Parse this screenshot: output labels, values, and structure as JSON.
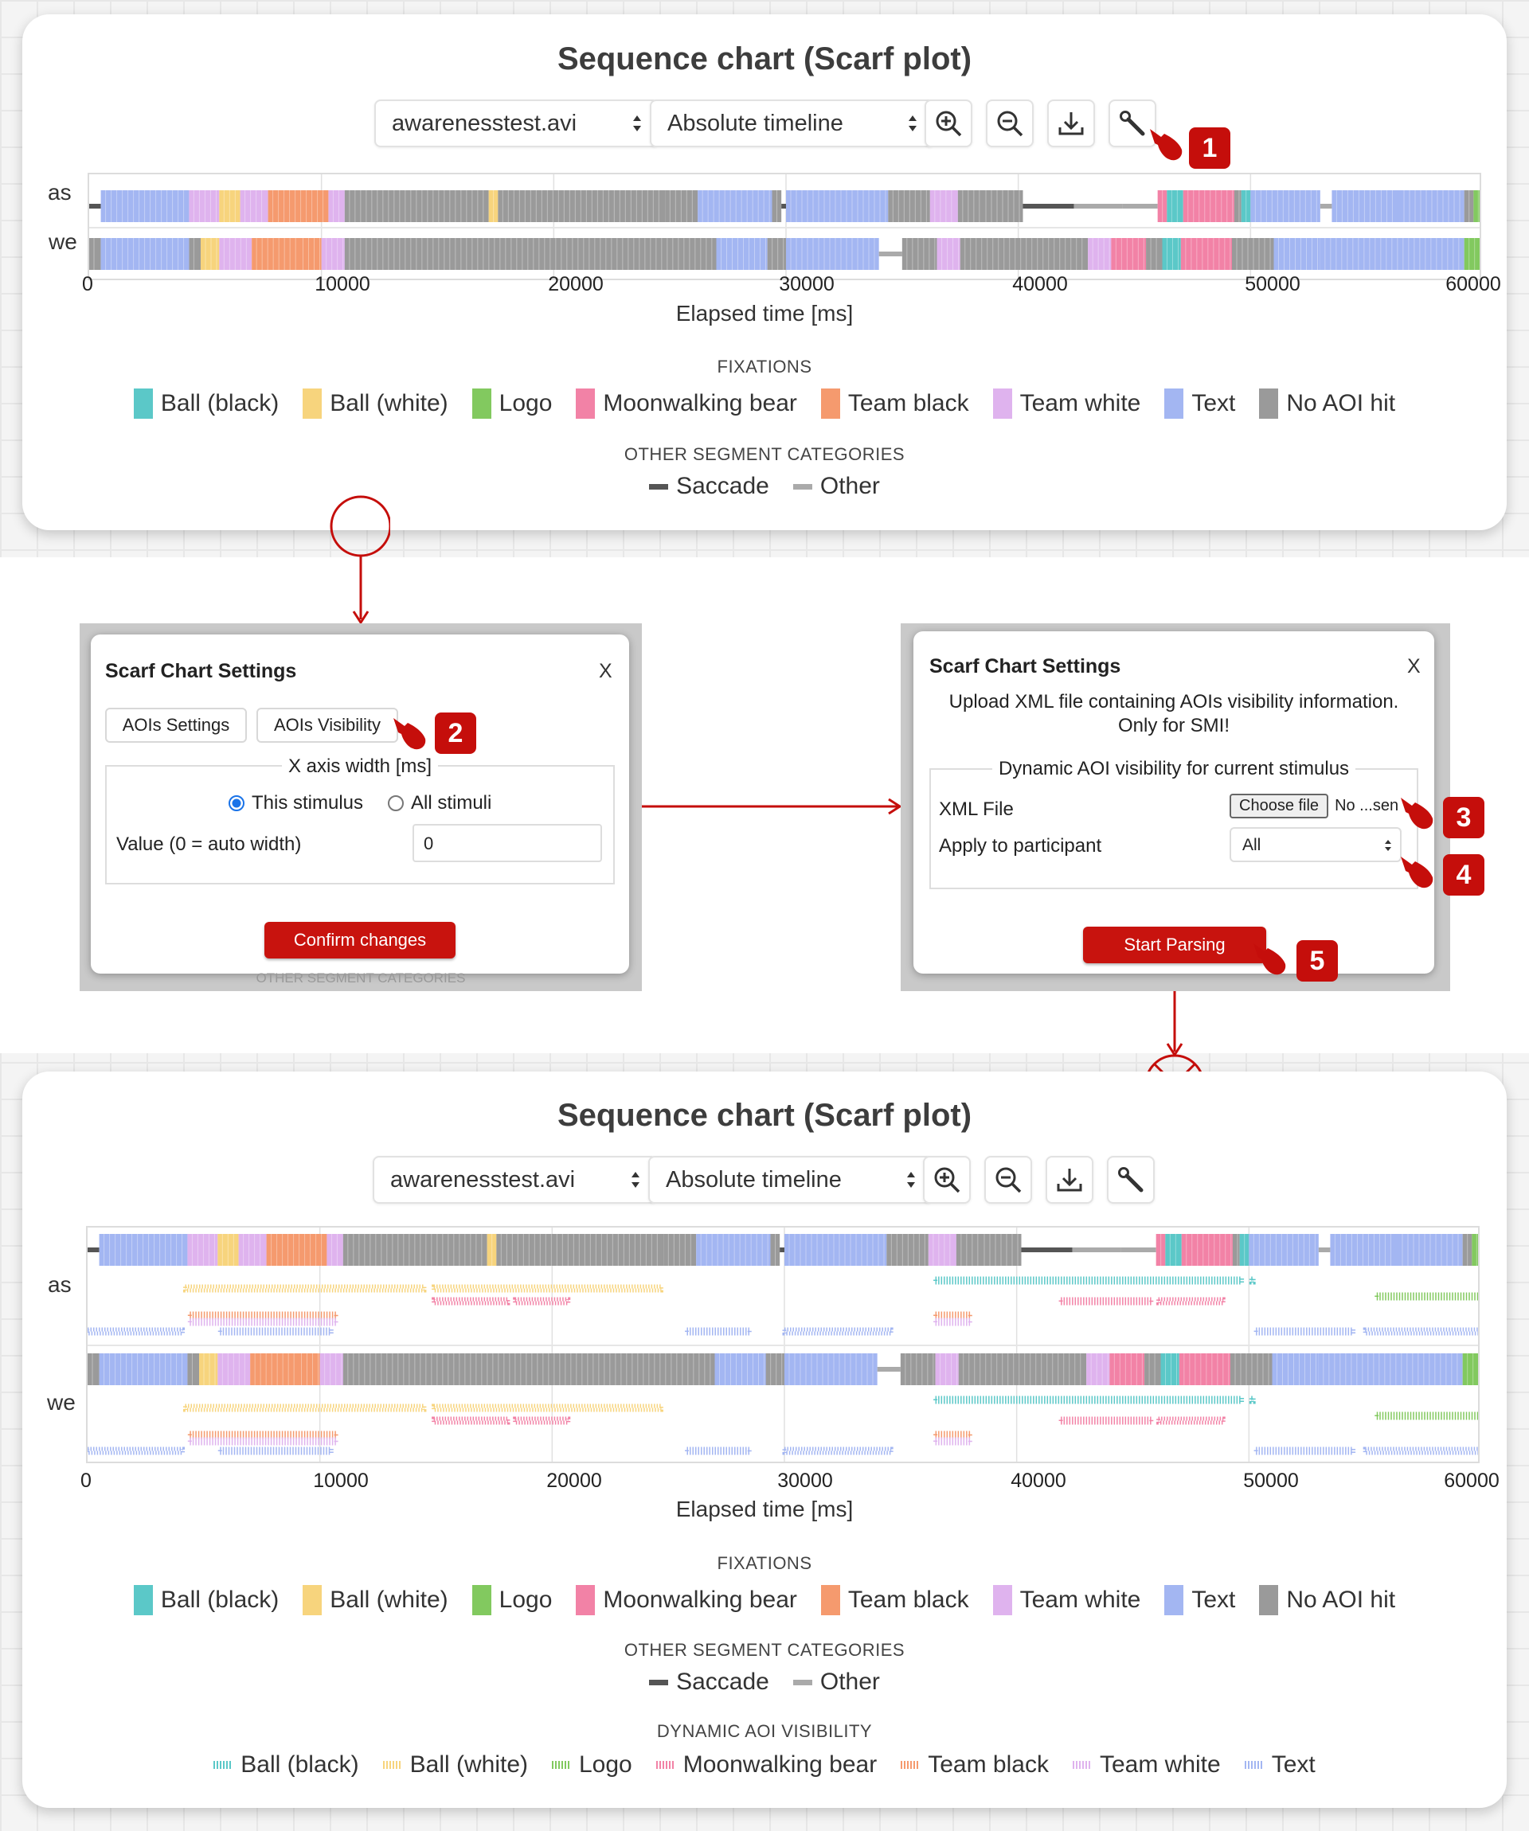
{
  "top_panel": {
    "title": "Sequence chart (Scarf plot)",
    "stimulus_select": "awarenesstest.avi",
    "timeline_select": "Absolute timeline",
    "participants": [
      "as",
      "we"
    ],
    "x_ticks": [
      "0",
      "10000",
      "20000",
      "30000",
      "40000",
      "50000",
      "60000"
    ],
    "x_label": "Elapsed time [ms]",
    "fixations_heading": "FIXATIONS",
    "fixations": [
      "Ball (black)",
      "Ball (white)",
      "Logo",
      "Moonwalking bear",
      "Team black",
      "Team white",
      "Text",
      "No AOI hit"
    ],
    "other_heading": "OTHER SEGMENT CATEGORIES",
    "other": [
      "Saccade",
      "Other"
    ]
  },
  "bottom_panel": {
    "title": "Sequence chart (Scarf plot)",
    "stimulus_select": "awarenesstest.avi",
    "timeline_select": "Absolute timeline",
    "participants": [
      "as",
      "we"
    ],
    "x_ticks": [
      "0",
      "10000",
      "20000",
      "30000",
      "40000",
      "50000",
      "60000"
    ],
    "x_label": "Elapsed time [ms]",
    "fixations_heading": "FIXATIONS",
    "fixations": [
      "Ball (black)",
      "Ball (white)",
      "Logo",
      "Moonwalking bear",
      "Team black",
      "Team white",
      "Text",
      "No AOI hit"
    ],
    "other_heading": "OTHER SEGMENT CATEGORIES",
    "other": [
      "Saccade",
      "Other"
    ],
    "dynamic_heading": "DYNAMIC AOI VISIBILITY",
    "dynamic": [
      "Ball (black)",
      "Ball (white)",
      "Logo",
      "Moonwalking bear",
      "Team black",
      "Team white",
      "Text"
    ]
  },
  "colors": {
    "Ball (black)": "#5bc8c8",
    "Ball (white)": "#f7d47d",
    "Logo": "#82c95f",
    "Moonwalking bear": "#f282a6",
    "Team black": "#f59a6e",
    "Team white": "#dfb3ee",
    "Text": "#a3b6f2",
    "No AOI hit": "#9a9a9a",
    "Saccade": "#555555",
    "Other": "#aaaaaa"
  },
  "dialog_left": {
    "title": "Scarf Chart Settings",
    "close": "X",
    "tab_aois_settings": "AOIs Settings",
    "tab_aois_visibility": "AOIs Visibility",
    "legend": "X axis width [ms]",
    "radio_this": "This stimulus",
    "radio_all": "All stimuli",
    "value_label": "Value (0 = auto width)",
    "value": "0",
    "confirm": "Confirm changes",
    "bg_caption": "OTHER SEGMENT CATEGORIES"
  },
  "dialog_right": {
    "title": "Scarf Chart Settings",
    "close": "X",
    "description": "Upload XML file containing AOIs visibility information. Only for SMI!",
    "legend": "Dynamic AOI visibility for current stimulus",
    "xml_label": "XML File",
    "choose_file": "Choose file",
    "no_file": "No ...sen",
    "participant_label": "Apply to participant",
    "participant_value": "All",
    "start": "Start Parsing"
  },
  "badges": [
    "1",
    "2",
    "3",
    "4",
    "5"
  ],
  "chart_data": [
    {
      "type": "scarf",
      "title": "Sequence chart (Scarf plot)",
      "xlabel": "Elapsed time [ms]",
      "xlim": [
        0,
        60000
      ],
      "rows": [
        {
          "name": "as",
          "segments": [
            [
              0,
              500,
              "Saccade"
            ],
            [
              500,
              4300,
              "Text"
            ],
            [
              4300,
              5600,
              "Team white"
            ],
            [
              5600,
              6500,
              "Ball (white)"
            ],
            [
              6500,
              7700,
              "Team white"
            ],
            [
              7700,
              10300,
              "Team black"
            ],
            [
              10300,
              11000,
              "Team white"
            ],
            [
              11000,
              17200,
              "No AOI hit"
            ],
            [
              17200,
              17600,
              "Ball (white)"
            ],
            [
              17600,
              24800,
              "No AOI hit"
            ],
            [
              24800,
              26200,
              "No AOI hit"
            ],
            [
              26200,
              29400,
              "Text"
            ],
            [
              29400,
              29800,
              "No AOI hit"
            ],
            [
              29800,
              30000,
              "Saccade"
            ],
            [
              30000,
              34400,
              "Text"
            ],
            [
              34400,
              36200,
              "No AOI hit"
            ],
            [
              36200,
              37400,
              "Team white"
            ],
            [
              37400,
              38400,
              "No AOI hit"
            ],
            [
              38400,
              40200,
              "No AOI hit"
            ],
            [
              40200,
              42400,
              "Saccade"
            ],
            [
              42400,
              44500,
              "Other"
            ],
            [
              44500,
              46000,
              "Other"
            ],
            [
              46000,
              46400,
              "Moonwalking bear"
            ],
            [
              46400,
              47100,
              "Ball (black)"
            ],
            [
              47100,
              49300,
              "Moonwalking bear"
            ],
            [
              49300,
              49600,
              "No AOI hit"
            ],
            [
              49600,
              50000,
              "Ball (black)"
            ],
            [
              50000,
              53000,
              "Text"
            ],
            [
              53000,
              53500,
              "Other"
            ],
            [
              53500,
              56400,
              "Text"
            ],
            [
              56400,
              59200,
              "Text"
            ],
            [
              59200,
              59600,
              "No AOI hit"
            ],
            [
              59600,
              60000,
              "Logo"
            ]
          ]
        },
        {
          "name": "we",
          "segments": [
            [
              0,
              500,
              "No AOI hit"
            ],
            [
              500,
              4300,
              "Text"
            ],
            [
              4300,
              4800,
              "No AOI hit"
            ],
            [
              4800,
              5600,
              "Ball (white)"
            ],
            [
              5600,
              7000,
              "Team white"
            ],
            [
              7000,
              9000,
              "Team black"
            ],
            [
              9000,
              10000,
              "Team black"
            ],
            [
              10000,
              11000,
              "Team white"
            ],
            [
              11000,
              27000,
              "No AOI hit"
            ],
            [
              27000,
              29200,
              "Text"
            ],
            [
              29200,
              30000,
              "No AOI hit"
            ],
            [
              30000,
              34000,
              "Text"
            ],
            [
              34000,
              35000,
              "Other"
            ],
            [
              35000,
              36500,
              "No AOI hit"
            ],
            [
              36500,
              37500,
              "Team white"
            ],
            [
              37500,
              43000,
              "No AOI hit"
            ],
            [
              43000,
              44000,
              "Team white"
            ],
            [
              44000,
              45500,
              "Moonwalking bear"
            ],
            [
              45500,
              46200,
              "No AOI hit"
            ],
            [
              46200,
              47000,
              "Ball (black)"
            ],
            [
              47000,
              49200,
              "Moonwalking bear"
            ],
            [
              49200,
              51000,
              "No AOI hit"
            ],
            [
              51000,
              53000,
              "Text"
            ],
            [
              53000,
              59200,
              "Text"
            ],
            [
              59200,
              60000,
              "Logo"
            ]
          ]
        }
      ],
      "dynamic_visibility": [
        {
          "participant": "as",
          "aoi": "Ball (black)",
          "intervals": [
            [
              36500,
              49700
            ],
            [
              50100,
              50200
            ]
          ]
        },
        {
          "participant": "as",
          "aoi": "Ball (white)",
          "intervals": [
            [
              4200,
              14500
            ],
            [
              14900,
              24700
            ]
          ]
        },
        {
          "participant": "as",
          "aoi": "Logo",
          "intervals": [
            [
              55500,
              60000
            ]
          ]
        },
        {
          "participant": "as",
          "aoi": "Moonwalking bear",
          "intervals": [
            [
              14900,
              18100
            ],
            [
              18400,
              20700
            ],
            [
              41900,
              45800
            ],
            [
              46100,
              48900
            ]
          ]
        },
        {
          "participant": "as",
          "aoi": "Team black",
          "intervals": [
            [
              4400,
              10700
            ],
            [
              36500,
              38000
            ]
          ]
        },
        {
          "participant": "as",
          "aoi": "Team white",
          "intervals": [
            [
              4400,
              10700
            ],
            [
              36500,
              38000
            ]
          ]
        },
        {
          "participant": "as",
          "aoi": "Text",
          "intervals": [
            [
              0,
              4100
            ],
            [
              5700,
              10500
            ],
            [
              25800,
              28500
            ],
            [
              30000,
              34600
            ],
            [
              50300,
              54500
            ],
            [
              55000,
              60000
            ]
          ]
        }
      ]
    }
  ]
}
